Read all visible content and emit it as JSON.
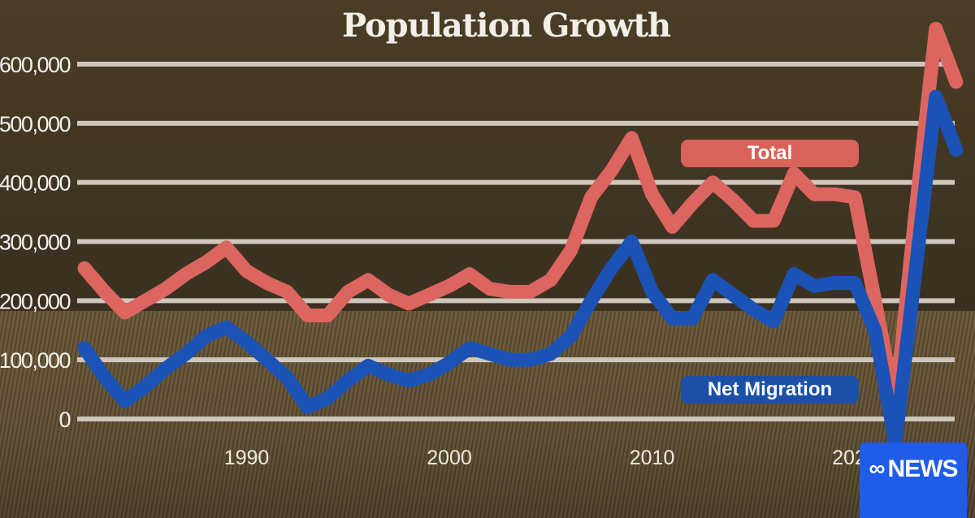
{
  "chart_data": {
    "type": "line",
    "title": "Population Growth",
    "xlabel": "",
    "ylabel": "",
    "ylim": [
      0,
      600000
    ],
    "xlim": [
      1982,
      2025
    ],
    "yticks": [
      "0",
      "100,000",
      "200,000",
      "300,000",
      "400,000",
      "500,000",
      "600,000"
    ],
    "xticks": [
      "1990",
      "2000",
      "2010",
      "2020"
    ],
    "grid": true,
    "x": [
      1982,
      1983,
      1984,
      1985,
      1986,
      1987,
      1988,
      1989,
      1990,
      1991,
      1992,
      1993,
      1994,
      1995,
      1996,
      1997,
      1998,
      1999,
      2000,
      2001,
      2002,
      2003,
      2004,
      2005,
      2006,
      2007,
      2008,
      2009,
      2010,
      2011,
      2012,
      2013,
      2014,
      2015,
      2016,
      2017,
      2018,
      2019,
      2020,
      2021,
      2022,
      2023,
      2024,
      2025
    ],
    "series": [
      {
        "name": "Total",
        "color": "#dd6560",
        "values": [
          255000,
          215000,
          180000,
          200000,
          220000,
          245000,
          265000,
          290000,
          250000,
          230000,
          215000,
          175000,
          175000,
          215000,
          235000,
          210000,
          195000,
          210000,
          225000,
          245000,
          220000,
          215000,
          215000,
          235000,
          285000,
          375000,
          420000,
          475000,
          380000,
          325000,
          365000,
          400000,
          370000,
          335000,
          335000,
          415000,
          380000,
          380000,
          375000,
          200000,
          20000,
          350000,
          660000,
          570000
        ]
      },
      {
        "name": "Net Migration",
        "color": "#1b52b5",
        "values": [
          120000,
          70000,
          30000,
          55000,
          85000,
          110000,
          140000,
          155000,
          130000,
          100000,
          70000,
          20000,
          35000,
          65000,
          90000,
          75000,
          65000,
          75000,
          95000,
          120000,
          110000,
          100000,
          100000,
          110000,
          140000,
          200000,
          255000,
          300000,
          215000,
          170000,
          170000,
          235000,
          210000,
          185000,
          165000,
          245000,
          225000,
          230000,
          230000,
          150000,
          -40000,
          250000,
          545000,
          455000
        ]
      }
    ],
    "legend": "inline-labels"
  },
  "branding": {
    "logo_text": "NEWS",
    "badge_color": "#1f5ce8"
  }
}
